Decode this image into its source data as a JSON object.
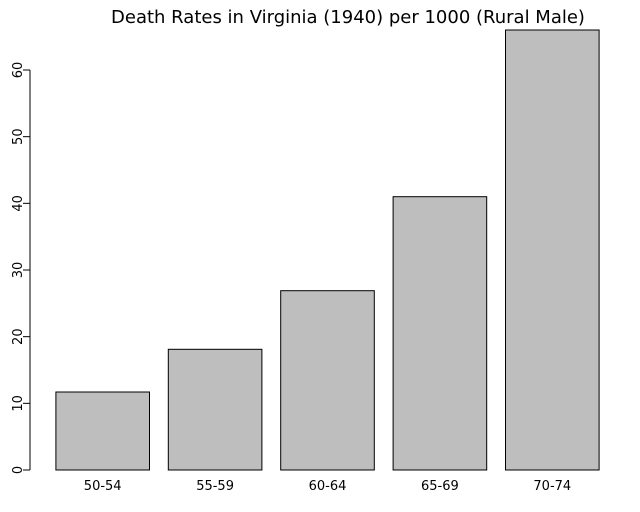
{
  "chart_data": {
    "type": "bar",
    "title": "Death Rates in Virginia (1940) per 1000 (Rural Male)",
    "xlabel": "",
    "ylabel": "",
    "categories": [
      "50-54",
      "55-59",
      "60-64",
      "65-69",
      "70-74"
    ],
    "values": [
      11.7,
      18.1,
      26.9,
      41.0,
      66.0
    ],
    "ylim": [
      0,
      66
    ],
    "yticks": [
      0,
      10,
      20,
      30,
      40,
      50,
      60
    ],
    "grid": false,
    "legend": "none",
    "bar_color": "#bebebe",
    "edge_color": "#000000"
  }
}
